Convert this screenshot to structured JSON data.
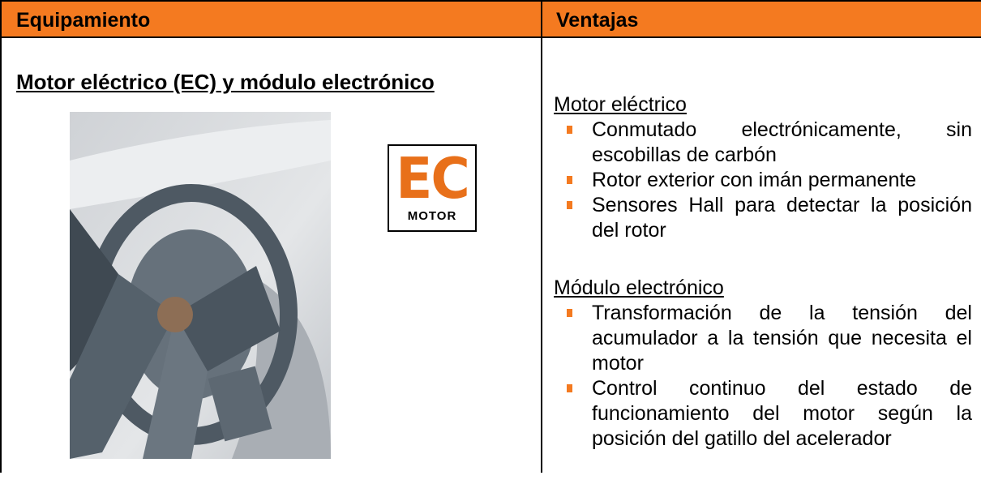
{
  "table": {
    "headers": [
      "Equipamiento",
      "Ventajas"
    ],
    "left": {
      "heading": "Motor eléctrico (EC) y módulo electrónico",
      "badge": {
        "big": "EC",
        "small": "MOTOR"
      }
    },
    "right": {
      "sections": [
        {
          "title": "Motor eléctrico",
          "items": [
            "Conmutado electrónicamente, sin escobillas de carbón",
            "Rotor exterior con imán permanente",
            "Sensores Hall para detectar la posición del rotor"
          ]
        },
        {
          "title": "Módulo electrónico",
          "items": [
            "Transformación de la tensión del acumulador a la tensión que necesita el motor",
            "Control continuo del estado de funcionamiento del motor según la posición del gatillo del acelerador"
          ]
        }
      ]
    }
  }
}
